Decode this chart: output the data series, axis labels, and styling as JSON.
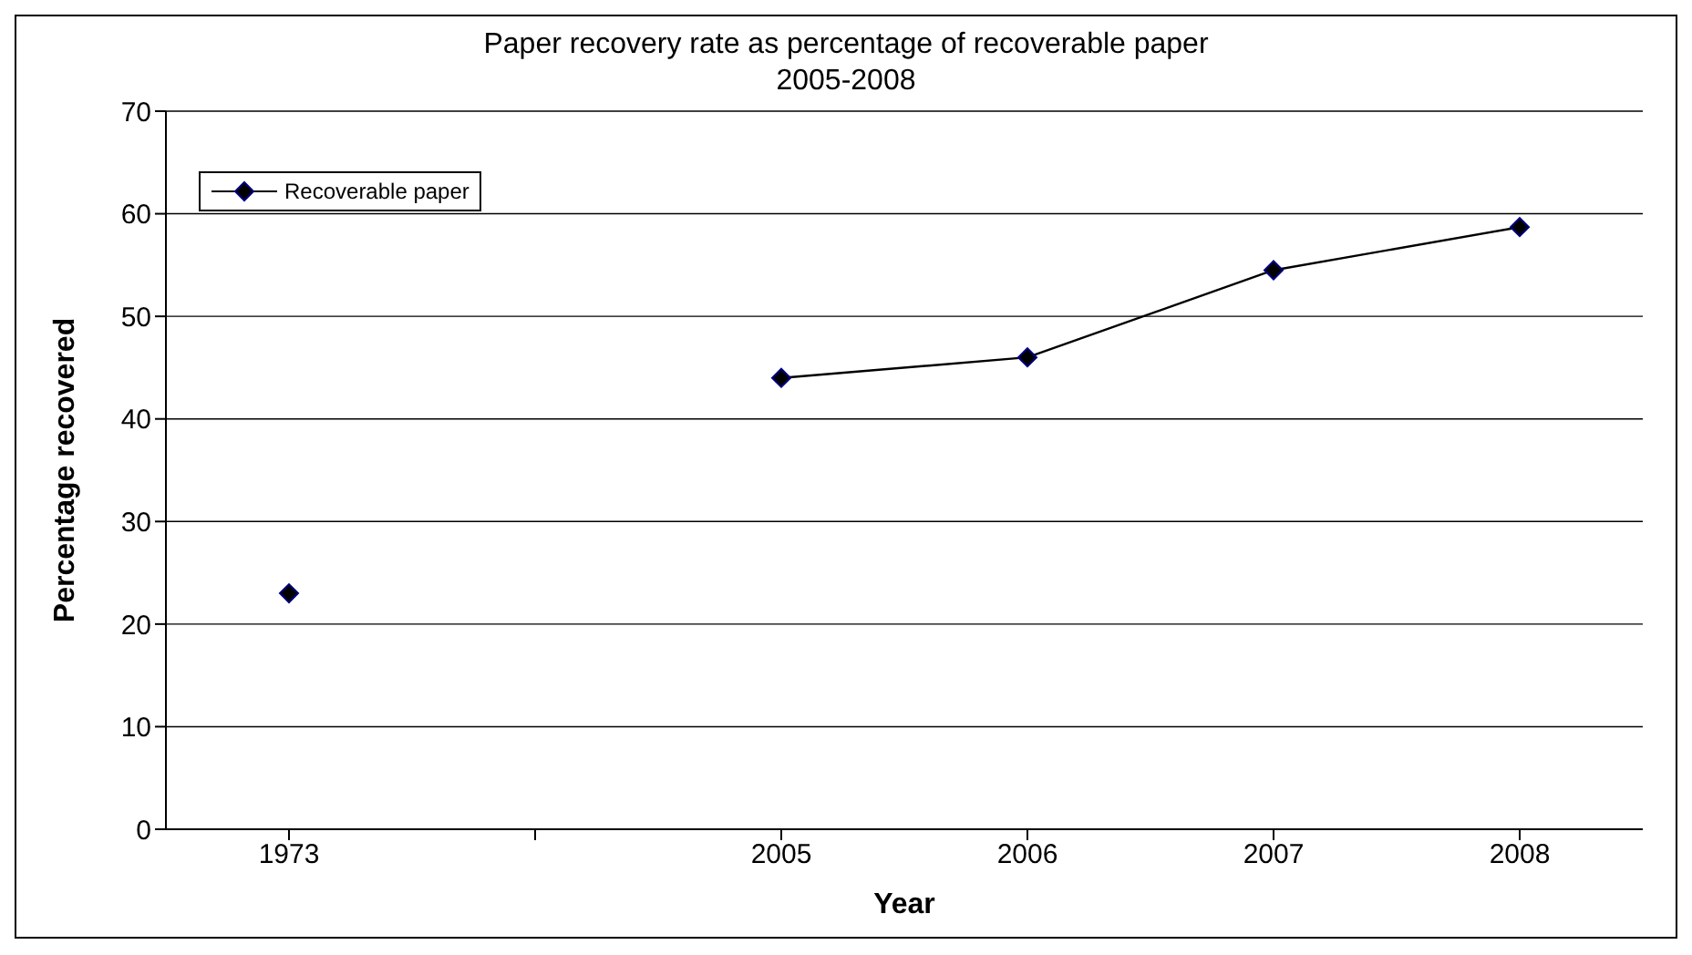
{
  "chart_data": {
    "type": "line",
    "title": "Paper recovery rate as percentage of recoverable paper\n2005-2008",
    "xlabel": "Year",
    "ylabel": "Percentage recovered",
    "categories": [
      "1973",
      null,
      "2005",
      "2006",
      "2007",
      "2008"
    ],
    "series": [
      {
        "name": "Recoverable paper",
        "color": "#000000",
        "values": [
          23,
          null,
          44,
          46,
          54.5,
          58.7
        ]
      }
    ],
    "ylim": [
      0,
      70
    ],
    "yticks": [
      0,
      10,
      20,
      30,
      40,
      50,
      60,
      70
    ],
    "grid": "y",
    "legend": "top left",
    "marker": "diamond",
    "line_style": "solid"
  }
}
